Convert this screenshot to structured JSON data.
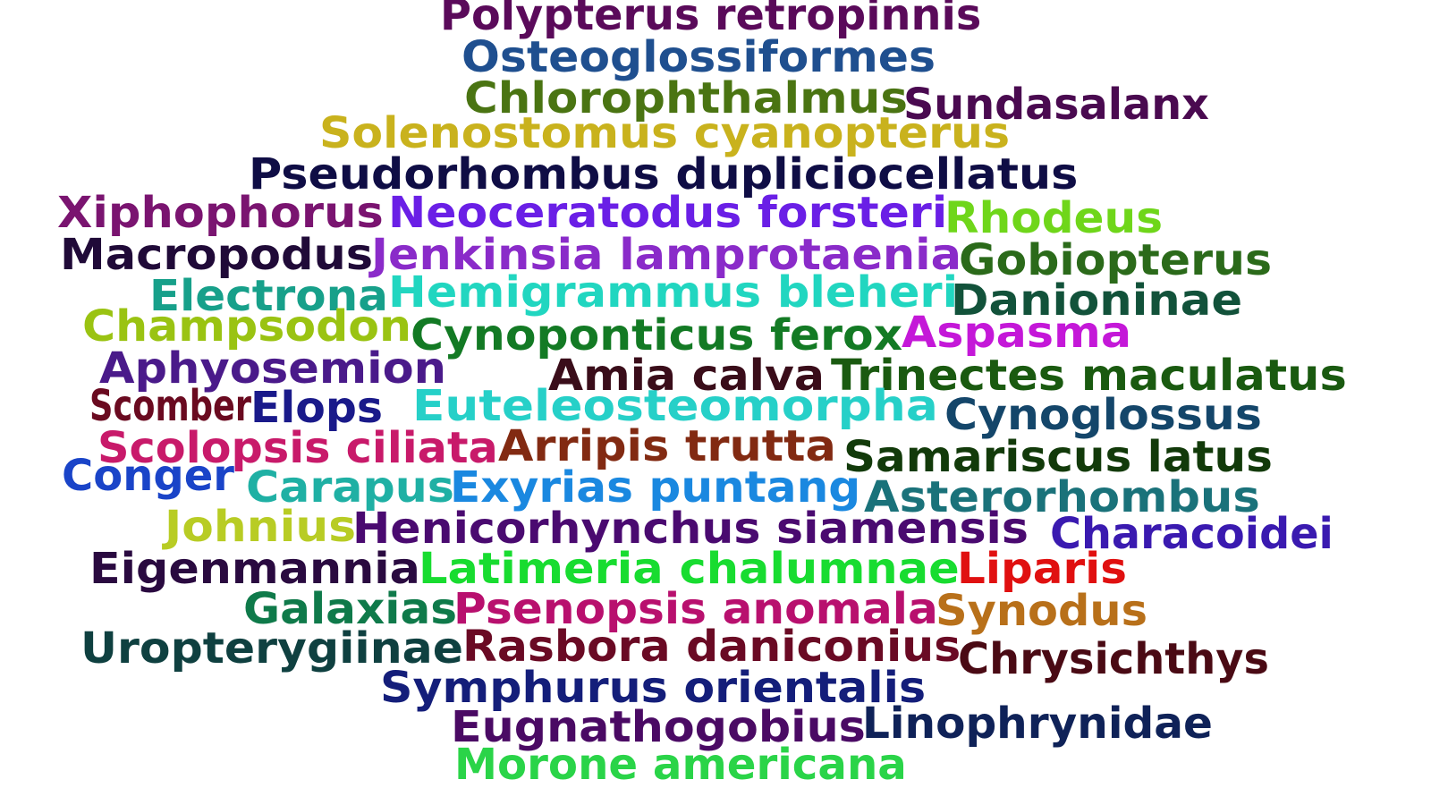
{
  "words": [
    {
      "text": "Polypterus retropinnis",
      "color": "#5a0a5a"
    },
    {
      "text": "Osteoglossiformes",
      "color": "#1f4f8f"
    },
    {
      "text": "Chlorophthalmus",
      "color": "#4a7412"
    },
    {
      "text": "Sundasalanx",
      "color": "#4a0a50"
    },
    {
      "text": "Solenostomus cyanopterus",
      "color": "#c9b21d"
    },
    {
      "text": "Pseudorhombus dupliciocellatus",
      "color": "#0f0d45"
    },
    {
      "text": "Xiphophorus",
      "color": "#7a1470"
    },
    {
      "text": "Neoceratodus forsteri",
      "color": "#6a1fe6"
    },
    {
      "text": "Rhodeus",
      "color": "#6fd61a"
    },
    {
      "text": "Macropodus",
      "color": "#200a38"
    },
    {
      "text": "Jenkinsia lamprotaenia",
      "color": "#8a2bc9"
    },
    {
      "text": "Gobiopterus",
      "color": "#2b6a1a"
    },
    {
      "text": "Electrona",
      "color": "#17a08a"
    },
    {
      "text": "Hemigrammus bleheri",
      "color": "#21d6c0"
    },
    {
      "text": "Danioninae",
      "color": "#12523a"
    },
    {
      "text": "Champsodon",
      "color": "#9ac312"
    },
    {
      "text": "Cynoponticus ferox",
      "color": "#137a24"
    },
    {
      "text": "Aspasma",
      "color": "#c418d8"
    },
    {
      "text": "Aphyosemion",
      "color": "#4a1a8a"
    },
    {
      "text": "Amia calva",
      "color": "#3a0d1a"
    },
    {
      "text": "Trinectes maculatus",
      "color": "#1a5a10"
    },
    {
      "text": "Scomber",
      "color": "#6a0a20"
    },
    {
      "text": "Elops",
      "color": "#1a1a8a"
    },
    {
      "text": "Euteleosteomorpha",
      "color": "#26d0c8"
    },
    {
      "text": "Cynoglossus",
      "color": "#14466a"
    },
    {
      "text": "Scolopsis ciliata",
      "color": "#c81a6a"
    },
    {
      "text": "Arripis trutta",
      "color": "#822a12"
    },
    {
      "text": "Samariscus latus",
      "color": "#123a0a"
    },
    {
      "text": "Conger",
      "color": "#1a44c8"
    },
    {
      "text": "Carapus",
      "color": "#1fb0a4"
    },
    {
      "text": "Exyrias puntang",
      "color": "#1a88e0"
    },
    {
      "text": "Asterorhombus",
      "color": "#1a727a"
    },
    {
      "text": "Johnius",
      "color": "#b8cc24"
    },
    {
      "text": "Henicorhynchus siamensis",
      "color": "#4a0a70"
    },
    {
      "text": "Characoidei",
      "color": "#3a1ab0"
    },
    {
      "text": "Eigenmannia",
      "color": "#2a0a40"
    },
    {
      "text": "Latimeria chalumnae",
      "color": "#18dc30"
    },
    {
      "text": "Liparis",
      "color": "#e01010"
    },
    {
      "text": "Galaxias",
      "color": "#0f7a4a"
    },
    {
      "text": "Psenopsis anomala",
      "color": "#b8106e"
    },
    {
      "text": "Synodus",
      "color": "#b8701a"
    },
    {
      "text": "Uropterygiinae",
      "color": "#0f4040"
    },
    {
      "text": "Rasbora daniconius",
      "color": "#6a0a24"
    },
    {
      "text": "Chrysichthys",
      "color": "#4a0a14"
    },
    {
      "text": "Symphurus orientalis",
      "color": "#141e7a"
    },
    {
      "text": "Eugnathogobius",
      "color": "#4a0a64"
    },
    {
      "text": "Linophrynidae",
      "color": "#0f2258"
    },
    {
      "text": "Morone americana",
      "color": "#2ad448"
    }
  ]
}
